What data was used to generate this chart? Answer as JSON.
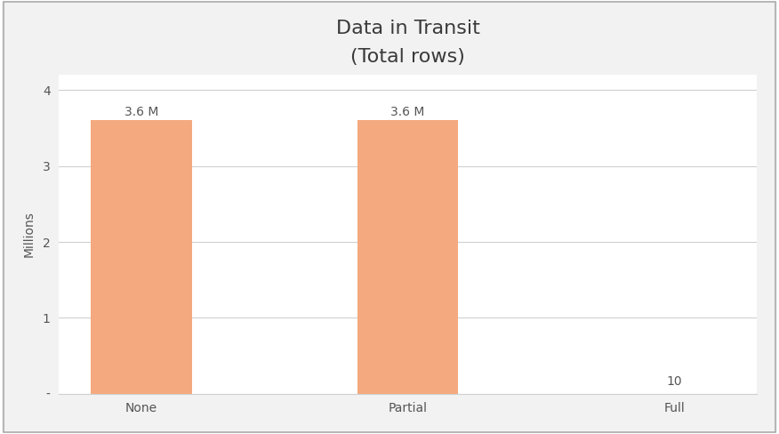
{
  "title": "Data in Transit",
  "subtitle": "(Total rows)",
  "categories": [
    "None",
    "Partial",
    "Full"
  ],
  "values": [
    3600000,
    3600000,
    10
  ],
  "bar_color": "#F4A97F",
  "bar_labels": [
    "3.6 M",
    "3.6 M",
    "10"
  ],
  "ylabel": "Millions",
  "ylim": [
    0,
    4200000
  ],
  "yticks": [
    0,
    1000000,
    2000000,
    3000000,
    4000000
  ],
  "ytick_labels": [
    "-",
    "1",
    "2",
    "3",
    "4"
  ],
  "background_color": "#f2f2f2",
  "plot_bg_color": "#ffffff",
  "title_fontsize": 16,
  "label_fontsize": 10,
  "tick_fontsize": 10,
  "ylabel_fontsize": 10,
  "grid_color": "#d0d0d0",
  "text_color": "#555555",
  "bar_width": 0.38
}
